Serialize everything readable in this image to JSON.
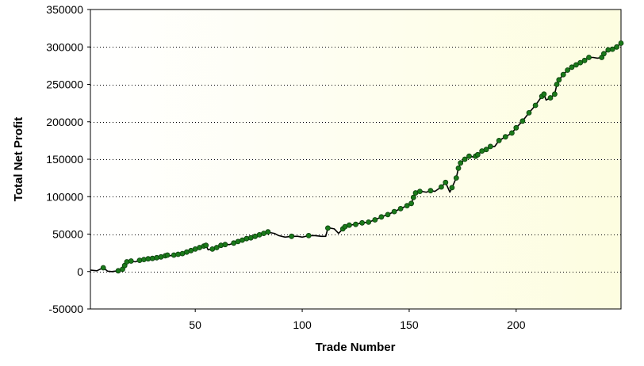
{
  "chart_data": {
    "type": "line",
    "title": "",
    "xlabel": "Trade Number",
    "ylabel": "Total Net Profit",
    "xlim": [
      1,
      249
    ],
    "ylim": [
      -50000,
      350000
    ],
    "x_ticks": [
      50,
      100,
      150,
      200
    ],
    "y_ticks": [
      -50000,
      0,
      50000,
      100000,
      150000,
      200000,
      250000,
      300000,
      350000
    ],
    "x_tick_labels": [
      "50",
      "100",
      "150",
      "200"
    ],
    "y_tick_labels": [
      "-50000",
      "0",
      "50000",
      "100000",
      "150000",
      "200000",
      "250000",
      "300000",
      "350000"
    ],
    "grid": {
      "horizontal": true,
      "vertical": false,
      "style": "dotted"
    },
    "legend": "none",
    "background_gradient": [
      "#ffffff",
      "#fdfde0"
    ],
    "line_color": "#000000",
    "marker_color": "#1a7a1a",
    "series": [
      {
        "x": [
          1,
          4,
          7,
          9,
          11,
          14,
          16,
          17,
          18,
          20,
          22,
          24,
          26,
          28,
          30,
          32,
          34,
          36,
          37,
          38,
          40,
          42,
          44,
          46,
          48,
          50,
          52,
          54,
          55,
          56,
          58,
          60,
          62,
          64,
          66,
          68,
          70,
          72,
          74,
          76,
          78,
          80,
          82,
          84,
          85,
          87,
          89,
          92,
          95,
          98,
          100,
          103,
          106,
          109,
          111,
          112,
          113,
          115,
          117,
          119,
          120,
          122,
          125,
          128,
          131,
          134,
          137,
          140,
          143,
          146,
          149,
          151,
          152,
          153,
          155,
          156,
          158,
          160,
          162,
          165,
          167,
          169,
          170,
          172,
          173,
          174,
          176,
          178,
          180,
          181,
          182,
          184,
          186,
          188,
          190,
          192,
          195,
          198,
          200,
          203,
          206,
          209,
          212,
          213,
          214,
          216,
          218,
          219,
          220,
          222,
          224,
          226,
          228,
          230,
          232,
          234,
          236,
          238,
          240,
          241,
          243,
          245,
          247,
          249
        ],
        "y": [
          2000,
          1000,
          5000,
          500,
          0,
          1000,
          3000,
          8000,
          13000,
          14000,
          13000,
          15000,
          16000,
          17000,
          17500,
          18500,
          19500,
          21000,
          22000,
          21000,
          22000,
          23000,
          24000,
          26000,
          28000,
          30000,
          32000,
          34000,
          35000,
          29000,
          30000,
          32000,
          35000,
          36000,
          36000,
          38000,
          40000,
          42000,
          44000,
          45000,
          47000,
          49000,
          51000,
          53000,
          52000,
          51000,
          48000,
          46000,
          47000,
          47000,
          46000,
          48000,
          48000,
          47000,
          47000,
          58000,
          58000,
          57000,
          51000,
          57000,
          60000,
          62000,
          63000,
          65000,
          66000,
          69000,
          73000,
          76000,
          80000,
          84000,
          88000,
          91000,
          99000,
          105000,
          107000,
          107000,
          106000,
          108000,
          107000,
          113000,
          119000,
          106000,
          112000,
          125000,
          138000,
          145000,
          150000,
          154000,
          153000,
          154000,
          156000,
          161000,
          163000,
          167000,
          167000,
          175000,
          180000,
          185000,
          192000,
          201000,
          212000,
          222000,
          234000,
          237000,
          229000,
          232000,
          237000,
          250000,
          256000,
          263000,
          269000,
          273000,
          276000,
          279000,
          282000,
          286000,
          286000,
          285000,
          286000,
          291000,
          296000,
          297000,
          300000,
          305000
        ]
      }
    ]
  }
}
